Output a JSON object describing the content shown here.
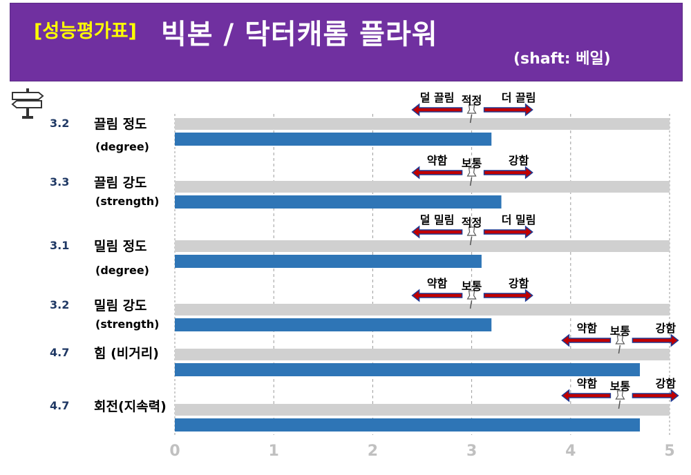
{
  "header": {
    "tag": "[성능평가표]",
    "title": "빅본 / 닥터캐롬 플라워",
    "subtitle": "(shaft: 베일)"
  },
  "colors": {
    "header_bg": "#7030a0",
    "tag_text": "#ffff00",
    "bar_fill": "#2e75b6",
    "track_fill": "#d0d0d0",
    "arrow_fill": "#c00000",
    "score_text": "#1f3864",
    "tick_text": "#c0c0c0"
  },
  "icons": {
    "top_left": "signpost-icon",
    "marker": "pushpin-icon"
  },
  "chart_data": {
    "type": "bar",
    "orientation": "horizontal",
    "xlim": [
      0,
      5
    ],
    "ticks": [
      "0",
      "1",
      "2",
      "3",
      "4",
      "5"
    ],
    "grid": true,
    "rows": [
      {
        "score": "3.2",
        "label": "끌림 정도",
        "sublabel": "(degree)",
        "value": 3.2,
        "scale": {
          "left": "덜 끌림",
          "center": "적정",
          "right": "더 끌림",
          "center_value": 3.0
        }
      },
      {
        "score": "3.3",
        "label": "끌림 강도",
        "sublabel": "(strength)",
        "value": 3.3,
        "scale": {
          "left": "약함",
          "center": "보통",
          "right": "강함",
          "center_value": 3.0
        }
      },
      {
        "score": "3.1",
        "label": "밀림 정도",
        "sublabel": "(degree)",
        "value": 3.1,
        "scale": {
          "left": "덜 밀림",
          "center": "적정",
          "right": "더 밀림",
          "center_value": 3.0
        }
      },
      {
        "score": "3.2",
        "label": "밀림 강도",
        "sublabel": "(strength)",
        "value": 3.2,
        "scale": {
          "left": "약함",
          "center": "보통",
          "right": "강함",
          "center_value": 3.0
        }
      },
      {
        "score": "4.7",
        "label": "힘 (비거리)",
        "sublabel": "",
        "value": 4.7,
        "scale": {
          "left": "약함",
          "center": "보통",
          "right": "강함",
          "center_value": 4.5
        }
      },
      {
        "score": "4.7",
        "label": "회전(지속력)",
        "sublabel": "",
        "value": 4.7,
        "scale": {
          "left": "약함",
          "center": "보통",
          "right": "강함",
          "center_value": 4.5
        }
      }
    ]
  }
}
